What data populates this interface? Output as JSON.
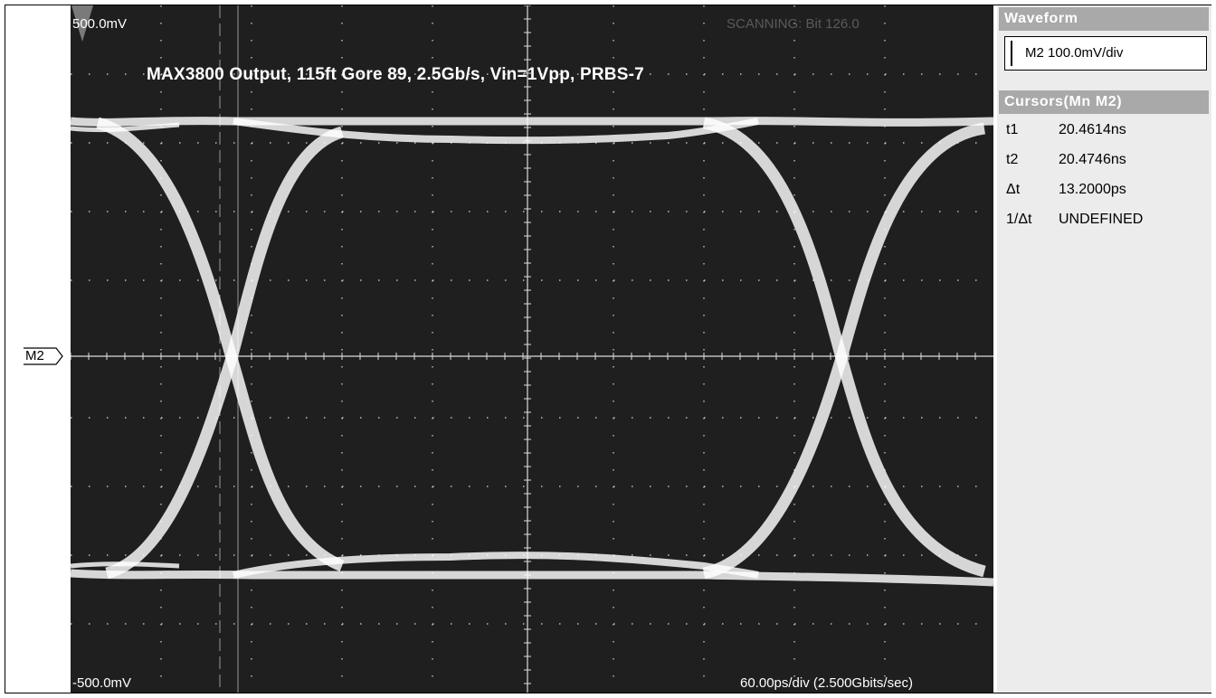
{
  "screen": {
    "vertical_top_label": "500.0mV",
    "vertical_bottom_label": "-500.0mV",
    "status_text": "SCANNING: Bit 126.0",
    "plot_title": "MAX3800 Output, 115ft Gore 89, 2.5Gb/s, Vin=1Vpp, PRBS-7",
    "timebase_label": "60.00ps/div (2.500Gbits/sec)",
    "channel_marker": "M2"
  },
  "sidebar": {
    "waveform_header": "Waveform",
    "waveform_setting": "M2 100.0mV/div",
    "cursors_header": "Cursors(Mn M2)",
    "cursors": [
      {
        "name": "t1",
        "value": "20.4614ns"
      },
      {
        "name": "t2",
        "value": "20.4746ns"
      },
      {
        "name": "Δt",
        "value": "13.2000ps"
      },
      {
        "name": "1/Δt",
        "value": "UNDEFINED"
      }
    ]
  },
  "colors": {
    "screen_bg": "#1f1f1f",
    "trace": "#ffffff",
    "grid": "#dcdcdc",
    "sidebar_bg": "#ececec",
    "header_bg": "#a9a9a9"
  }
}
